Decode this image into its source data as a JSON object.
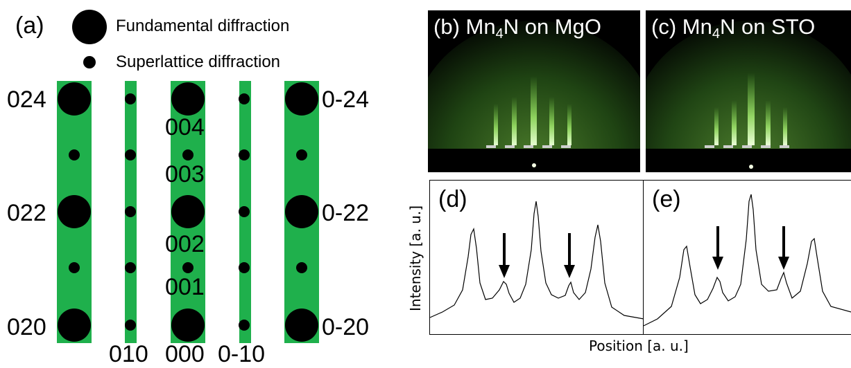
{
  "panel_a": {
    "label": "(a)",
    "legend_fundamental": "Fundamental diffraction",
    "legend_superlattice": "Superlattice diffraction",
    "left_labels": [
      "024",
      "022",
      "020"
    ],
    "right_labels": [
      "0-24",
      "0-22",
      "0-20"
    ],
    "center_labels": [
      "004",
      "003",
      "002",
      "001"
    ],
    "bottom_labels": [
      "010",
      "000",
      "0-10"
    ],
    "stripe_color": "#1fb04c"
  },
  "panel_b": {
    "prefix": "(b) Mn",
    "sub": "4",
    "suffix": "N on MgO"
  },
  "panel_c": {
    "prefix": "(c) Mn",
    "sub": "4",
    "suffix": "N on STO"
  },
  "panel_d": {
    "label": "(d)"
  },
  "panel_e": {
    "label": "(e)"
  },
  "axes": {
    "xlabel": "Position [a. u.]",
    "ylabel": "Intensity [a. u.]"
  }
}
